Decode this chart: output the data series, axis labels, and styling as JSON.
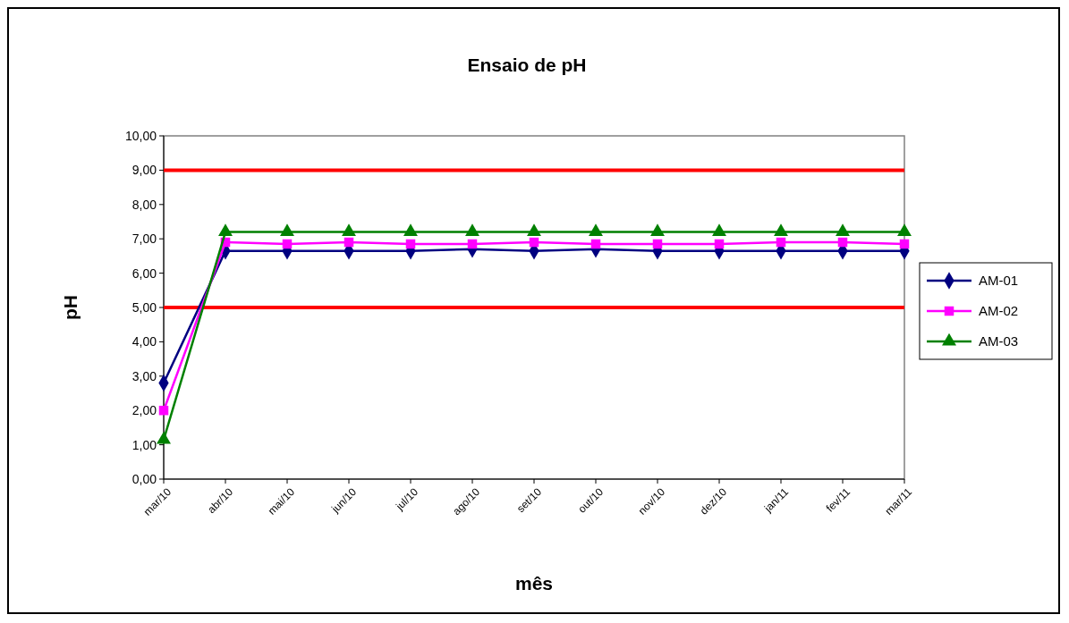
{
  "chart_data": {
    "type": "line",
    "title": "Ensaio de pH",
    "xlabel": "mês",
    "ylabel": "pH",
    "categories": [
      "mar/10",
      "abr/10",
      "mai/10",
      "jun/10",
      "jul/10",
      "ago/10",
      "set/10",
      "out/10",
      "nov/10",
      "dez/10",
      "jan/11",
      "fev/11",
      "mar/11"
    ],
    "series": [
      {
        "name": "AM-01",
        "color": "#000080",
        "marker": "diamond",
        "values": [
          2.8,
          6.65,
          6.65,
          6.65,
          6.65,
          6.7,
          6.65,
          6.7,
          6.65,
          6.65,
          6.65,
          6.65,
          6.65
        ]
      },
      {
        "name": "AM-02",
        "color": "#ff00ff",
        "marker": "square",
        "values": [
          2.0,
          6.9,
          6.85,
          6.9,
          6.85,
          6.85,
          6.9,
          6.85,
          6.85,
          6.85,
          6.9,
          6.9,
          6.85
        ]
      },
      {
        "name": "AM-03",
        "color": "#008000",
        "marker": "triangle",
        "values": [
          1.15,
          7.2,
          7.2,
          7.2,
          7.2,
          7.2,
          7.2,
          7.2,
          7.2,
          7.2,
          7.2,
          7.2,
          7.2
        ]
      }
    ],
    "ylim": [
      0,
      10
    ],
    "yticks": [
      {
        "value": 0,
        "label": "0,00"
      },
      {
        "value": 1,
        "label": "1,00"
      },
      {
        "value": 2,
        "label": "2,00"
      },
      {
        "value": 3,
        "label": "3,00"
      },
      {
        "value": 4,
        "label": "4,00"
      },
      {
        "value": 5,
        "label": "5,00"
      },
      {
        "value": 6,
        "label": "6,00"
      },
      {
        "value": 7,
        "label": "7,00"
      },
      {
        "value": 8,
        "label": "8,00"
      },
      {
        "value": 9,
        "label": "9,00"
      },
      {
        "value": 10,
        "label": "10,00"
      }
    ],
    "ref_lines": [
      {
        "axis": "y",
        "value": 9,
        "color": "#ff0000"
      },
      {
        "axis": "y",
        "value": 5,
        "color": "#ff0000"
      }
    ],
    "legend": "right",
    "grid": false
  }
}
